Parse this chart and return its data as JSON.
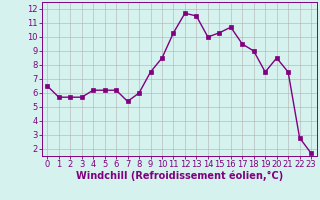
{
  "x": [
    0,
    1,
    2,
    3,
    4,
    5,
    6,
    7,
    8,
    9,
    10,
    11,
    12,
    13,
    14,
    15,
    16,
    17,
    18,
    19,
    20,
    21,
    22,
    23
  ],
  "y": [
    6.5,
    5.7,
    5.7,
    5.7,
    6.2,
    6.2,
    6.2,
    5.4,
    6.0,
    7.5,
    8.5,
    10.3,
    11.7,
    11.5,
    10.0,
    10.3,
    10.7,
    9.5,
    9.0,
    7.5,
    8.5,
    7.5,
    2.8,
    1.7
  ],
  "xlabel": "Windchill (Refroidissement éolien,°C)",
  "line_color": "#800080",
  "marker_color": "#800080",
  "bg_color": "#d5f2ee",
  "grid_color": "#b0b0b0",
  "xlim": [
    -0.5,
    23.5
  ],
  "ylim": [
    1.5,
    12.5
  ],
  "xticks": [
    0,
    1,
    2,
    3,
    4,
    5,
    6,
    7,
    8,
    9,
    10,
    11,
    12,
    13,
    14,
    15,
    16,
    17,
    18,
    19,
    20,
    21,
    22,
    23
  ],
  "yticks": [
    2,
    3,
    4,
    5,
    6,
    7,
    8,
    9,
    10,
    11,
    12
  ],
  "tick_color": "#800080",
  "tick_fontsize": 6.0,
  "xlabel_fontsize": 7.0,
  "marker_size": 2.5,
  "line_width": 1.0
}
